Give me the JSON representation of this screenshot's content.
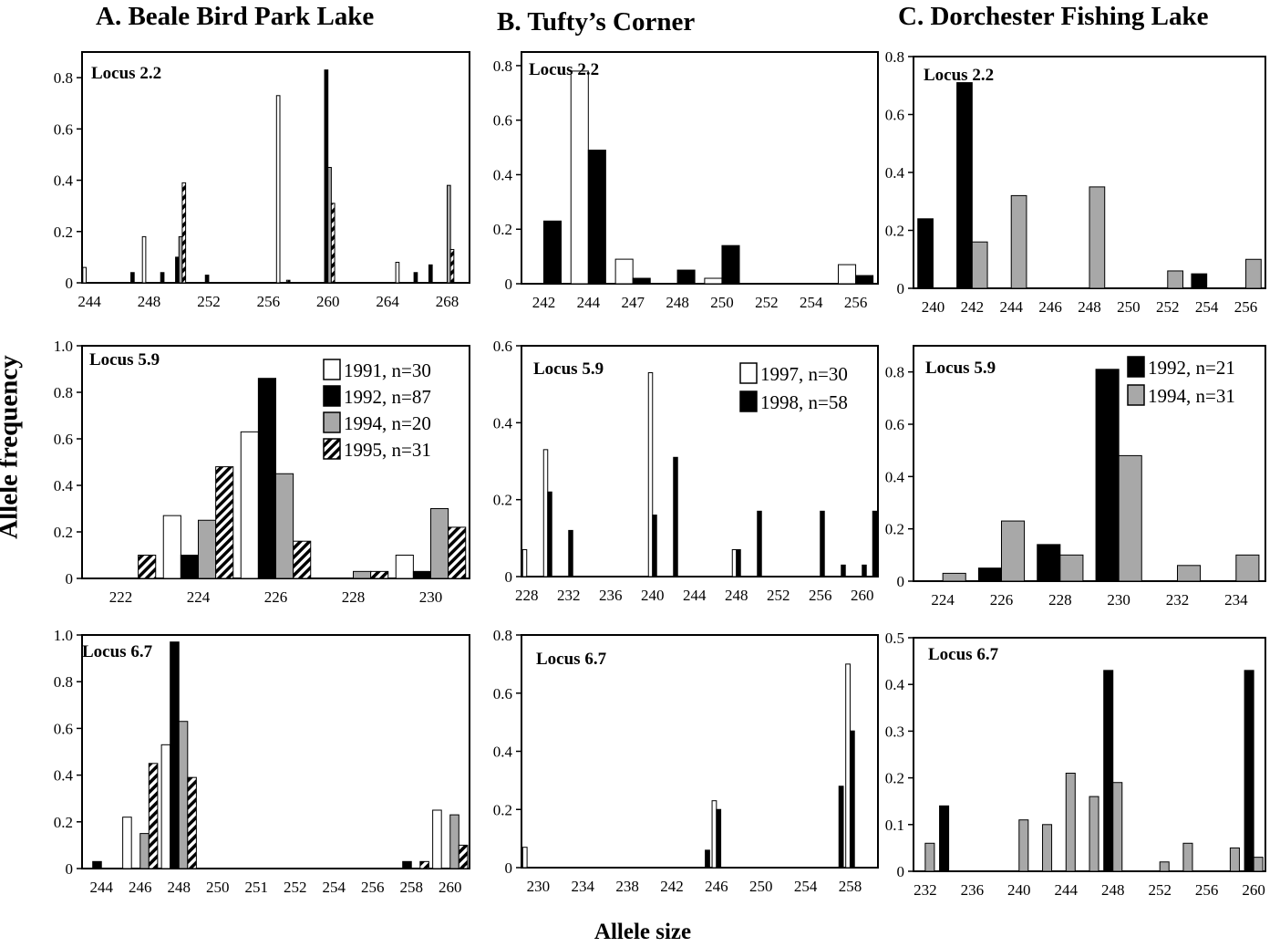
{
  "figure": {
    "columns": [
      {
        "title": "A. Beale Bird Park Lake"
      },
      {
        "title": "B. Tufty’s Corner"
      },
      {
        "title": "C. Dorchester Fishing Lake"
      }
    ],
    "ylabel": "Allele frequency",
    "xlabel": "Allele size"
  },
  "series_styles": [
    {
      "year": "1991",
      "fill": "#ffffff",
      "pattern": "none"
    },
    {
      "year": "1992",
      "fill": "#000000",
      "pattern": "none"
    },
    {
      "year": "1994",
      "fill": "#a8a8a8",
      "pattern": "none"
    },
    {
      "year": "1995",
      "fill": "#ffffff",
      "pattern": "diagonal-stripes"
    },
    {
      "year": "1997",
      "fill": "#ffffff",
      "pattern": "none"
    },
    {
      "year": "1998",
      "fill": "#000000",
      "pattern": "none"
    }
  ],
  "chart_data": [
    {
      "type": "bar",
      "panel": "A-2.2",
      "locus": "Locus 2.2",
      "x": [
        244,
        245,
        246,
        247,
        248,
        249,
        250,
        251,
        252,
        253,
        254,
        255,
        256,
        257,
        258,
        259,
        260,
        261,
        262,
        263,
        264,
        265,
        266,
        267,
        268,
        269
      ],
      "tick_labels": [
        "244",
        "248",
        "252",
        "256",
        "260",
        "264",
        "268"
      ],
      "tick_values": [
        244,
        248,
        252,
        256,
        260,
        264,
        268
      ],
      "ylim": [
        0,
        0.9
      ],
      "yticks": [
        0,
        0.2,
        0.4,
        0.6,
        0.8
      ],
      "series": [
        {
          "year": "1991",
          "values": [
            0.06,
            0,
            0,
            0,
            0.18,
            0,
            0,
            0,
            0,
            0,
            0,
            0,
            0,
            0.73,
            0,
            0,
            0,
            0,
            0,
            0,
            0,
            0.08,
            0,
            0,
            0,
            0
          ]
        },
        {
          "year": "1992",
          "values": [
            0,
            0,
            0,
            0.04,
            0,
            0.04,
            0.1,
            0,
            0.03,
            0,
            0,
            0,
            0,
            0,
            0,
            0,
            0.83,
            0,
            0,
            0,
            0,
            0,
            0.04,
            0.07,
            0,
            0
          ]
        },
        {
          "year": "1994",
          "values": [
            0,
            0,
            0,
            0,
            0,
            0,
            0.18,
            0,
            0,
            0,
            0,
            0,
            0,
            0,
            0,
            0,
            0.45,
            0,
            0,
            0,
            0,
            0,
            0,
            0,
            0.38,
            0
          ]
        },
        {
          "year": "1995",
          "values": [
            0,
            0,
            0,
            0,
            0,
            0,
            0.39,
            0,
            0,
            0,
            0,
            0,
            0,
            0.01,
            0,
            0,
            0.31,
            0,
            0,
            0,
            0,
            0,
            0,
            0,
            0.13,
            0
          ]
        }
      ]
    },
    {
      "type": "bar",
      "panel": "A-5.9",
      "locus": "Locus 5.9",
      "x": [
        222,
        224,
        226,
        228,
        230
      ],
      "tick_labels": [
        "222",
        "224",
        "226",
        "228",
        "230"
      ],
      "tick_values": [
        222,
        224,
        226,
        228,
        230
      ],
      "ylim": [
        0,
        1.0
      ],
      "yticks": [
        0,
        0.2,
        0.4,
        0.6,
        0.8,
        1.0
      ],
      "legend": [
        {
          "year": "1991",
          "label": "1991, n=30"
        },
        {
          "year": "1992",
          "label": "1992, n=87"
        },
        {
          "year": "1994",
          "label": "1994, n=20"
        },
        {
          "year": "1995",
          "label": "1995, n=31"
        }
      ],
      "series": [
        {
          "year": "1991",
          "values": [
            0,
            0.27,
            0.63,
            0,
            0.1
          ]
        },
        {
          "year": "1992",
          "values": [
            0,
            0.1,
            0.86,
            0,
            0.03
          ]
        },
        {
          "year": "1994",
          "values": [
            0,
            0.25,
            0.45,
            0.03,
            0.3
          ]
        },
        {
          "year": "1995",
          "values": [
            0.1,
            0.48,
            0.16,
            0.03,
            0.22
          ]
        }
      ]
    },
    {
      "type": "bar",
      "panel": "A-6.7",
      "locus": "Locus 6.7",
      "x": [
        244,
        246,
        248,
        250,
        251,
        252,
        254,
        256,
        258,
        260
      ],
      "tick_labels": [
        "244",
        "246",
        "248",
        "250",
        "251",
        "252",
        "254",
        "256",
        "258",
        "260"
      ],
      "tick_values": [
        244,
        246,
        248,
        250,
        251,
        252,
        254,
        256,
        258,
        260
      ],
      "ylim": [
        0,
        1.0
      ],
      "yticks": [
        0,
        0.2,
        0.4,
        0.6,
        0.8,
        1.0
      ],
      "series": [
        {
          "year": "1991",
          "values": [
            0,
            0.22,
            0.53,
            0,
            0,
            0,
            0,
            0,
            0,
            0.25
          ]
        },
        {
          "year": "1992",
          "values": [
            0.03,
            0,
            0.97,
            0,
            0,
            0,
            0,
            0,
            0.03,
            0
          ]
        },
        {
          "year": "1994",
          "values": [
            0,
            0.15,
            0.63,
            0,
            0,
            0,
            0,
            0,
            0,
            0.23
          ]
        },
        {
          "year": "1995",
          "values": [
            0,
            0.45,
            0.39,
            0,
            0,
            0,
            0,
            0,
            0.03,
            0.1
          ]
        }
      ]
    },
    {
      "type": "bar",
      "panel": "B-2.2",
      "locus": "Locus 2.2",
      "x": [
        242,
        244,
        247,
        248,
        250,
        252,
        254,
        256
      ],
      "tick_labels": [
        "242",
        "244",
        "247",
        "248",
        "250",
        "252",
        "254",
        "256"
      ],
      "tick_values": [
        242,
        244,
        247,
        248,
        250,
        252,
        254,
        256
      ],
      "ylim": [
        0,
        0.85
      ],
      "yticks": [
        0,
        0.2,
        0.4,
        0.6,
        0.8
      ],
      "series": [
        {
          "year": "1997",
          "values": [
            0,
            0.78,
            0.09,
            0,
            0.02,
            0,
            0,
            0.07
          ]
        },
        {
          "year": "1998",
          "values": [
            0.23,
            0.49,
            0.02,
            0.05,
            0.14,
            0,
            0,
            0.03
          ]
        }
      ]
    },
    {
      "type": "bar",
      "panel": "B-5.9",
      "locus": "Locus 5.9",
      "x": [
        228,
        229,
        230,
        231,
        232,
        233,
        234,
        235,
        236,
        237,
        238,
        239,
        240,
        241,
        242,
        243,
        244,
        245,
        246,
        247,
        248,
        249,
        250,
        251,
        252,
        253,
        254,
        255,
        256,
        257,
        258,
        259,
        260,
        261
      ],
      "tick_labels": [
        "228",
        "232",
        "236",
        "240",
        "244",
        "248",
        "252",
        "256",
        "260"
      ],
      "tick_values": [
        228,
        232,
        236,
        240,
        244,
        248,
        252,
        256,
        260
      ],
      "ylim": [
        0,
        0.6
      ],
      "yticks": [
        0,
        0.2,
        0.4,
        0.6
      ],
      "legend": [
        {
          "year": "1997",
          "label": "1997, n=30"
        },
        {
          "year": "1998",
          "label": "1998, n=58"
        }
      ],
      "series": [
        {
          "year": "1997",
          "values": [
            0.07,
            0,
            0.33,
            0,
            0,
            0,
            0,
            0,
            0,
            0,
            0,
            0,
            0.53,
            0,
            0,
            0,
            0,
            0,
            0,
            0,
            0.07,
            0,
            0,
            0,
            0,
            0,
            0,
            0,
            0,
            0,
            0,
            0,
            0,
            0
          ]
        },
        {
          "year": "1998",
          "values": [
            0,
            0,
            0.22,
            0,
            0.12,
            0,
            0,
            0,
            0,
            0,
            0,
            0,
            0.16,
            0,
            0.31,
            0,
            0,
            0,
            0,
            0,
            0.07,
            0,
            0.17,
            0,
            0,
            0,
            0,
            0,
            0.17,
            0,
            0.03,
            0,
            0.03,
            0.17
          ]
        }
      ]
    },
    {
      "type": "bar",
      "panel": "B-6.7",
      "locus": "Locus 6.7",
      "x": [
        229,
        230,
        231,
        232,
        233,
        234,
        235,
        236,
        237,
        238,
        239,
        240,
        241,
        242,
        243,
        244,
        245,
        246,
        247,
        248,
        249,
        250,
        251,
        252,
        253,
        254,
        255,
        256,
        257,
        258,
        259,
        260
      ],
      "tick_labels": [
        "230",
        "234",
        "238",
        "242",
        "246",
        "250",
        "254",
        "258"
      ],
      "tick_values": [
        230,
        234,
        238,
        242,
        246,
        250,
        254,
        258
      ],
      "ylim": [
        0,
        0.8
      ],
      "yticks": [
        0,
        0.2,
        0.4,
        0.6,
        0.8
      ],
      "series": [
        {
          "year": "1997",
          "values": [
            0.07,
            0,
            0,
            0,
            0,
            0,
            0,
            0,
            0,
            0,
            0,
            0,
            0,
            0,
            0,
            0,
            0,
            0.23,
            0,
            0,
            0,
            0,
            0,
            0,
            0,
            0,
            0,
            0,
            0,
            0.7,
            0,
            0
          ]
        },
        {
          "year": "1998",
          "values": [
            0,
            0,
            0,
            0,
            0,
            0,
            0,
            0,
            0,
            0,
            0,
            0,
            0,
            0,
            0,
            0,
            0.06,
            0.2,
            0,
            0,
            0,
            0,
            0,
            0,
            0,
            0,
            0,
            0,
            0.28,
            0.47,
            0,
            0
          ]
        }
      ]
    },
    {
      "type": "bar",
      "panel": "C-2.2",
      "locus": "Locus 2.2",
      "x": [
        240,
        242,
        244,
        246,
        248,
        250,
        252,
        254,
        256
      ],
      "tick_labels": [
        "240",
        "242",
        "244",
        "246",
        "248",
        "250",
        "252",
        "254",
        "256"
      ],
      "tick_values": [
        240,
        242,
        244,
        246,
        248,
        250,
        252,
        254,
        256
      ],
      "ylim": [
        0,
        0.8
      ],
      "yticks": [
        0,
        0.2,
        0.4,
        0.6,
        0.8
      ],
      "series": [
        {
          "year": "1992",
          "values": [
            0.24,
            0.71,
            0,
            0,
            0,
            0,
            0,
            0.05,
            0
          ]
        },
        {
          "year": "1994",
          "values": [
            0,
            0.16,
            0.32,
            0,
            0.35,
            0,
            0.06,
            0,
            0.1
          ]
        }
      ]
    },
    {
      "type": "bar",
      "panel": "C-5.9",
      "locus": "Locus 5.9",
      "x": [
        224,
        226,
        228,
        230,
        232,
        234
      ],
      "tick_labels": [
        "224",
        "226",
        "228",
        "230",
        "232",
        "234"
      ],
      "tick_values": [
        224,
        226,
        228,
        230,
        232,
        234
      ],
      "ylim": [
        0,
        0.9
      ],
      "yticks": [
        0,
        0.2,
        0.4,
        0.6,
        0.8
      ],
      "legend": [
        {
          "year": "1992",
          "label": "1992, n=21"
        },
        {
          "year": "1994",
          "label": "1994, n=31"
        }
      ],
      "series": [
        {
          "year": "1992",
          "values": [
            0,
            0.05,
            0.14,
            0.81,
            0,
            0
          ]
        },
        {
          "year": "1994",
          "values": [
            0.03,
            0.23,
            0.1,
            0.48,
            0.06,
            0.1
          ]
        }
      ]
    },
    {
      "type": "bar",
      "panel": "C-6.7",
      "locus": "Locus 6.7",
      "x": [
        232,
        234,
        236,
        238,
        240,
        242,
        244,
        246,
        248,
        250,
        252,
        254,
        256,
        258,
        260
      ],
      "tick_labels": [
        "232",
        "236",
        "240",
        "244",
        "248",
        "252",
        "256",
        "260"
      ],
      "tick_values": [
        232,
        236,
        240,
        244,
        248,
        252,
        256,
        260
      ],
      "ylim": [
        0,
        0.5
      ],
      "yticks": [
        0,
        0.1,
        0.2,
        0.3,
        0.4,
        0.5
      ],
      "series": [
        {
          "year": "1992",
          "values": [
            0,
            0.14,
            0,
            0,
            0,
            0,
            0,
            0,
            0.43,
            0,
            0,
            0,
            0,
            0,
            0.43
          ]
        },
        {
          "year": "1994",
          "values": [
            0.06,
            0,
            0,
            0,
            0.11,
            0.1,
            0.21,
            0.16,
            0.19,
            0,
            0.02,
            0.06,
            0,
            0.05,
            0.03
          ]
        }
      ]
    }
  ]
}
